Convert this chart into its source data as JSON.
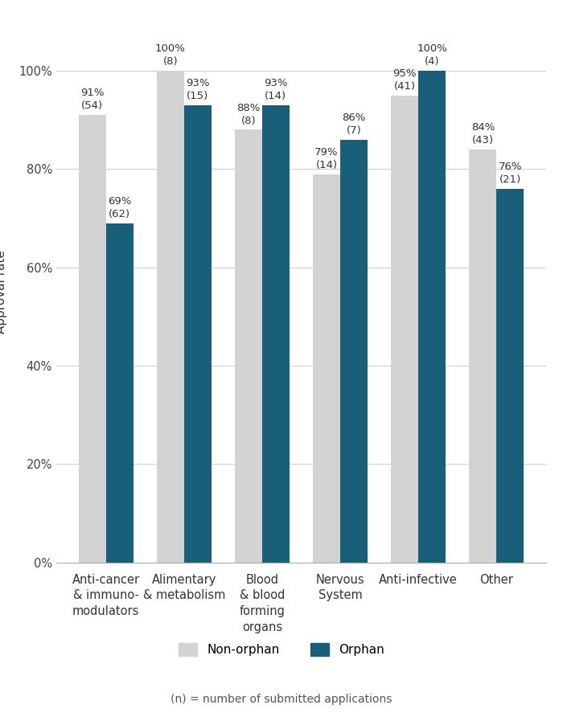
{
  "categories": [
    "Anti-cancer\n& immuno-\nmodulators",
    "Alimentary\n& metabolism",
    "Blood\n& blood\nforming\norgans",
    "Nervous\nSystem",
    "Anti-infective",
    "Other"
  ],
  "non_orphan_values": [
    91,
    100,
    88,
    79,
    95,
    84
  ],
  "orphan_values": [
    69,
    93,
    93,
    86,
    100,
    76
  ],
  "non_orphan_n": [
    54,
    8,
    8,
    14,
    41,
    43
  ],
  "orphan_n": [
    62,
    15,
    14,
    7,
    4,
    21
  ],
  "non_orphan_color": "#d3d3d3",
  "orphan_color": "#1a5f7a",
  "bar_width": 0.35,
  "ylim": [
    0,
    110
  ],
  "yticks": [
    0,
    20,
    40,
    60,
    80,
    100
  ],
  "ytick_labels": [
    "0%",
    "20%",
    "40%",
    "60%",
    "80%",
    "100%"
  ],
  "ylabel": "Approval rate",
  "legend_non_orphan": "Non-orphan",
  "legend_orphan": "Orphan",
  "footnote": "(n) = number of submitted applications",
  "background_color": "#ffffff",
  "label_fontsize": 9.5,
  "tick_fontsize": 10.5,
  "ylabel_fontsize": 11
}
